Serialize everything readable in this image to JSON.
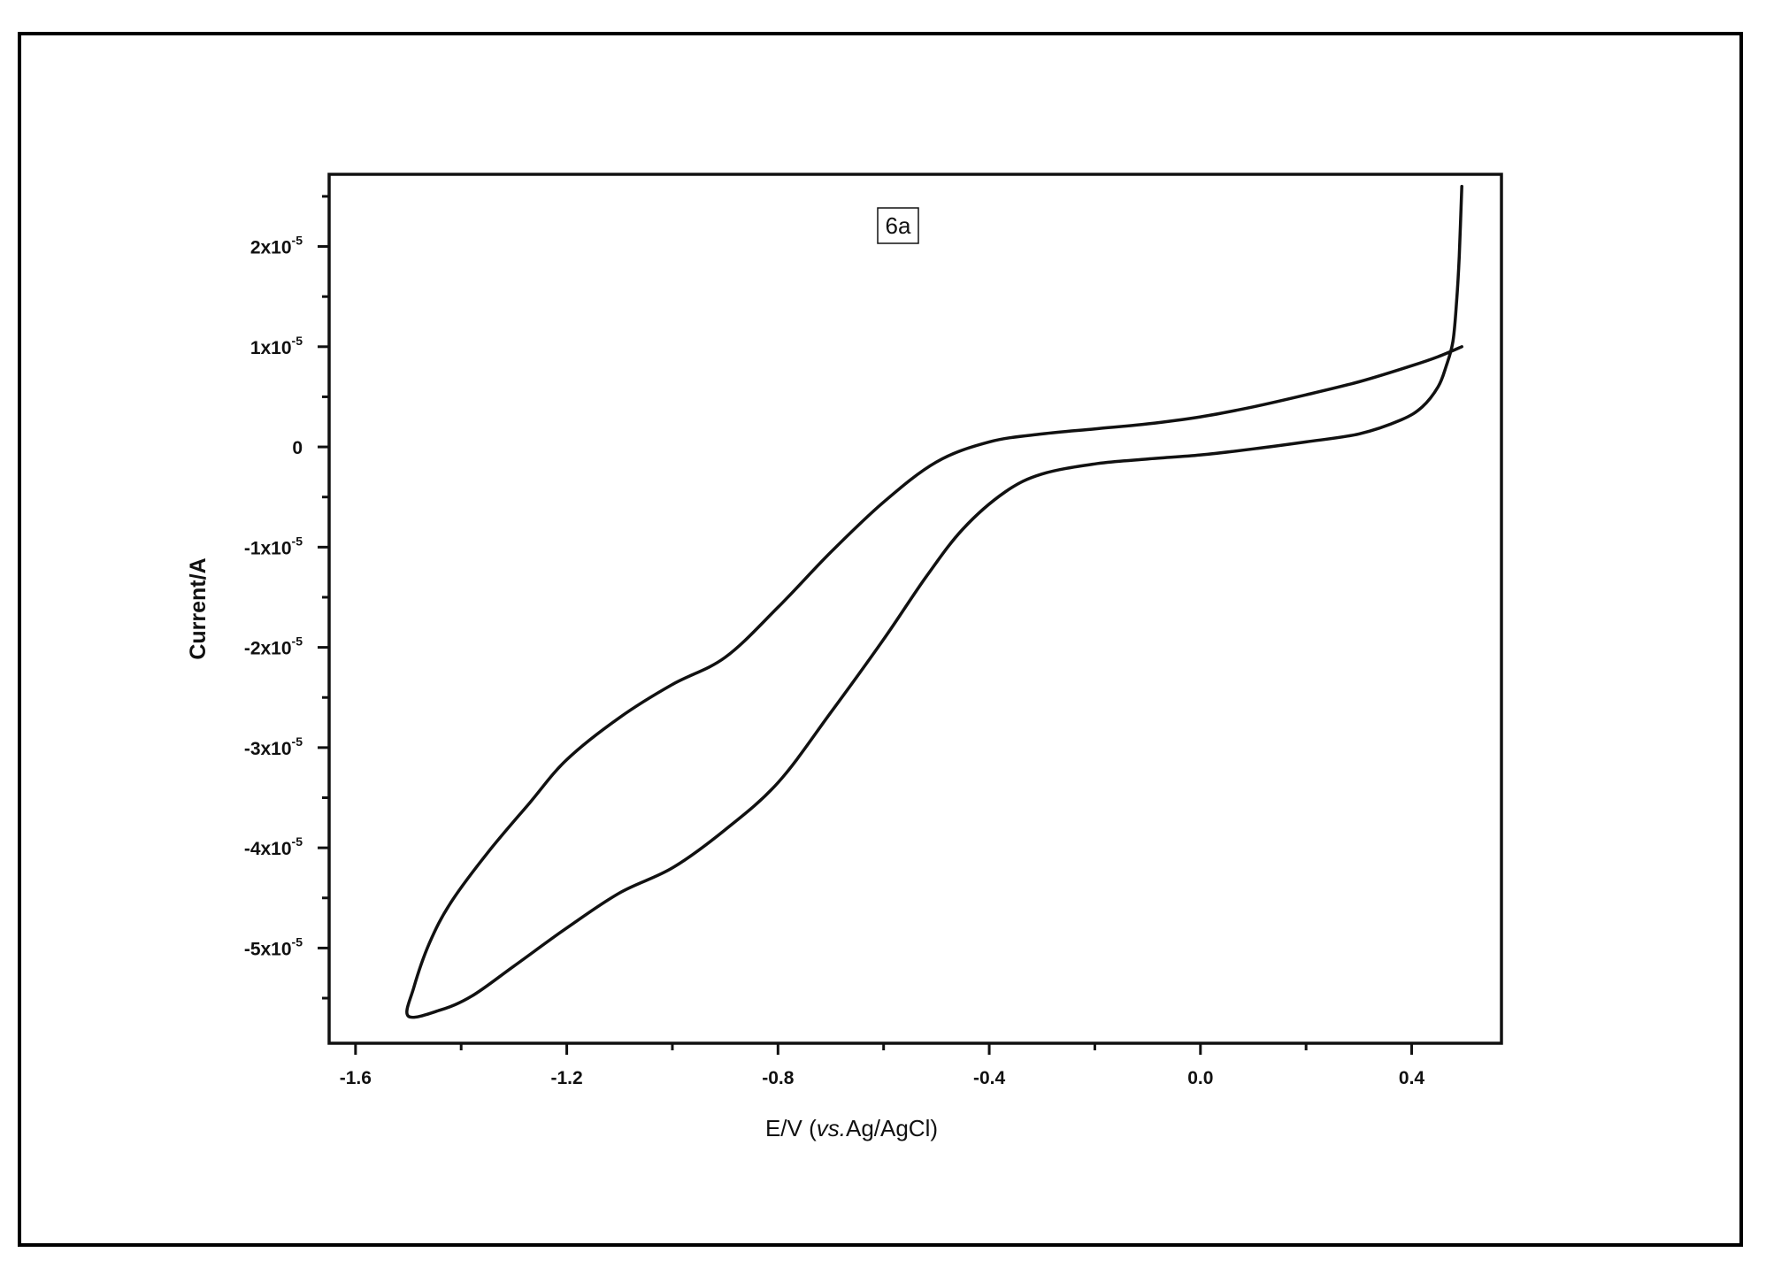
{
  "chart_data": {
    "type": "line",
    "annotation": "6a",
    "xlabel": {
      "prefix": "E/V (",
      "italic": "vs.",
      "suffix": "Ag/AgCl)"
    },
    "ylabel": "Current/A",
    "xlim": [
      -1.65,
      0.57
    ],
    "ylim": [
      -5.95e-05,
      2.72e-05
    ],
    "x_ticks": [
      {
        "value": -1.6,
        "label": "-1.6"
      },
      {
        "value": -1.2,
        "label": "-1.2"
      },
      {
        "value": -0.8,
        "label": "-0.8"
      },
      {
        "value": -0.4,
        "label": "-0.4"
      },
      {
        "value": 0.0,
        "label": "0.0"
      },
      {
        "value": 0.4,
        "label": "0.4"
      }
    ],
    "x_minor_ticks": [
      -1.4,
      -1.0,
      -0.6,
      -0.2,
      0.2
    ],
    "y_ticks": [
      {
        "value": 2e-05,
        "mantissa": "2x10",
        "exponent": "-5"
      },
      {
        "value": 1e-05,
        "mantissa": "1x10",
        "exponent": "-5"
      },
      {
        "value": 0,
        "mantissa": "0",
        "exponent": ""
      },
      {
        "value": -1e-05,
        "mantissa": "-1x10",
        "exponent": "-5"
      },
      {
        "value": -2e-05,
        "mantissa": "-2x10",
        "exponent": "-5"
      },
      {
        "value": -3e-05,
        "mantissa": "-3x10",
        "exponent": "-5"
      },
      {
        "value": -4e-05,
        "mantissa": "-4x10",
        "exponent": "-5"
      },
      {
        "value": -5e-05,
        "mantissa": "-5x10",
        "exponent": "-5"
      }
    ],
    "y_minor_ticks": [
      2.5e-05,
      1.5e-05,
      5e-06,
      -5e-06,
      -1.5e-05,
      -2.5e-05,
      -3.5e-05,
      -4.5e-05,
      -5.5e-05
    ],
    "grid": false,
    "series": [
      {
        "color": "#111111",
        "points": [
          [
            0.495,
            2.6e-05
          ],
          [
            0.49,
            1.9e-05
          ],
          [
            0.485,
            1.45e-05
          ],
          [
            0.478,
            1.05e-05
          ],
          [
            0.465,
            8e-06
          ],
          [
            0.45,
            6e-06
          ],
          [
            0.42,
            4e-06
          ],
          [
            0.38,
            2.7e-06
          ],
          [
            0.3,
            1.3e-06
          ],
          [
            0.2,
            5e-07
          ],
          [
            0.1,
            -2e-07
          ],
          [
            0.0,
            -8e-07
          ],
          [
            -0.1,
            -1.2e-06
          ],
          [
            -0.2,
            -1.7e-06
          ],
          [
            -0.3,
            -2.7e-06
          ],
          [
            -0.37,
            -4.5e-06
          ],
          [
            -0.45,
            -8.2e-06
          ],
          [
            -0.52,
            -1.3e-05
          ],
          [
            -0.6,
            -1.92e-05
          ],
          [
            -0.7,
            -2.65e-05
          ],
          [
            -0.8,
            -3.35e-05
          ],
          [
            -0.9,
            -3.82e-05
          ],
          [
            -1.0,
            -4.2e-05
          ],
          [
            -1.1,
            -4.45e-05
          ],
          [
            -1.2,
            -4.8e-05
          ],
          [
            -1.3,
            -5.18e-05
          ],
          [
            -1.38,
            -5.48e-05
          ],
          [
            -1.44,
            -5.62e-05
          ],
          [
            -1.5,
            -5.68e-05
          ],
          [
            -1.49,
            -5.4e-05
          ],
          [
            -1.46,
            -4.95e-05
          ],
          [
            -1.42,
            -4.55e-05
          ],
          [
            -1.35,
            -4.05e-05
          ],
          [
            -1.27,
            -3.55e-05
          ],
          [
            -1.2,
            -3.12e-05
          ],
          [
            -1.1,
            -2.7e-05
          ],
          [
            -1.0,
            -2.37e-05
          ],
          [
            -0.9,
            -2.1e-05
          ],
          [
            -0.8,
            -1.6e-05
          ],
          [
            -0.7,
            -1.05e-05
          ],
          [
            -0.6,
            -5.5e-06
          ],
          [
            -0.5,
            -1.5e-06
          ],
          [
            -0.4,
            5e-07
          ],
          [
            -0.3,
            1.3e-06
          ],
          [
            -0.2,
            1.8e-06
          ],
          [
            -0.1,
            2.3e-06
          ],
          [
            0.0,
            3e-06
          ],
          [
            0.1,
            4e-06
          ],
          [
            0.2,
            5.2e-06
          ],
          [
            0.3,
            6.5e-06
          ],
          [
            0.4,
            8.1e-06
          ],
          [
            0.45,
            9e-06
          ],
          [
            0.495,
            1e-05
          ]
        ]
      }
    ]
  }
}
